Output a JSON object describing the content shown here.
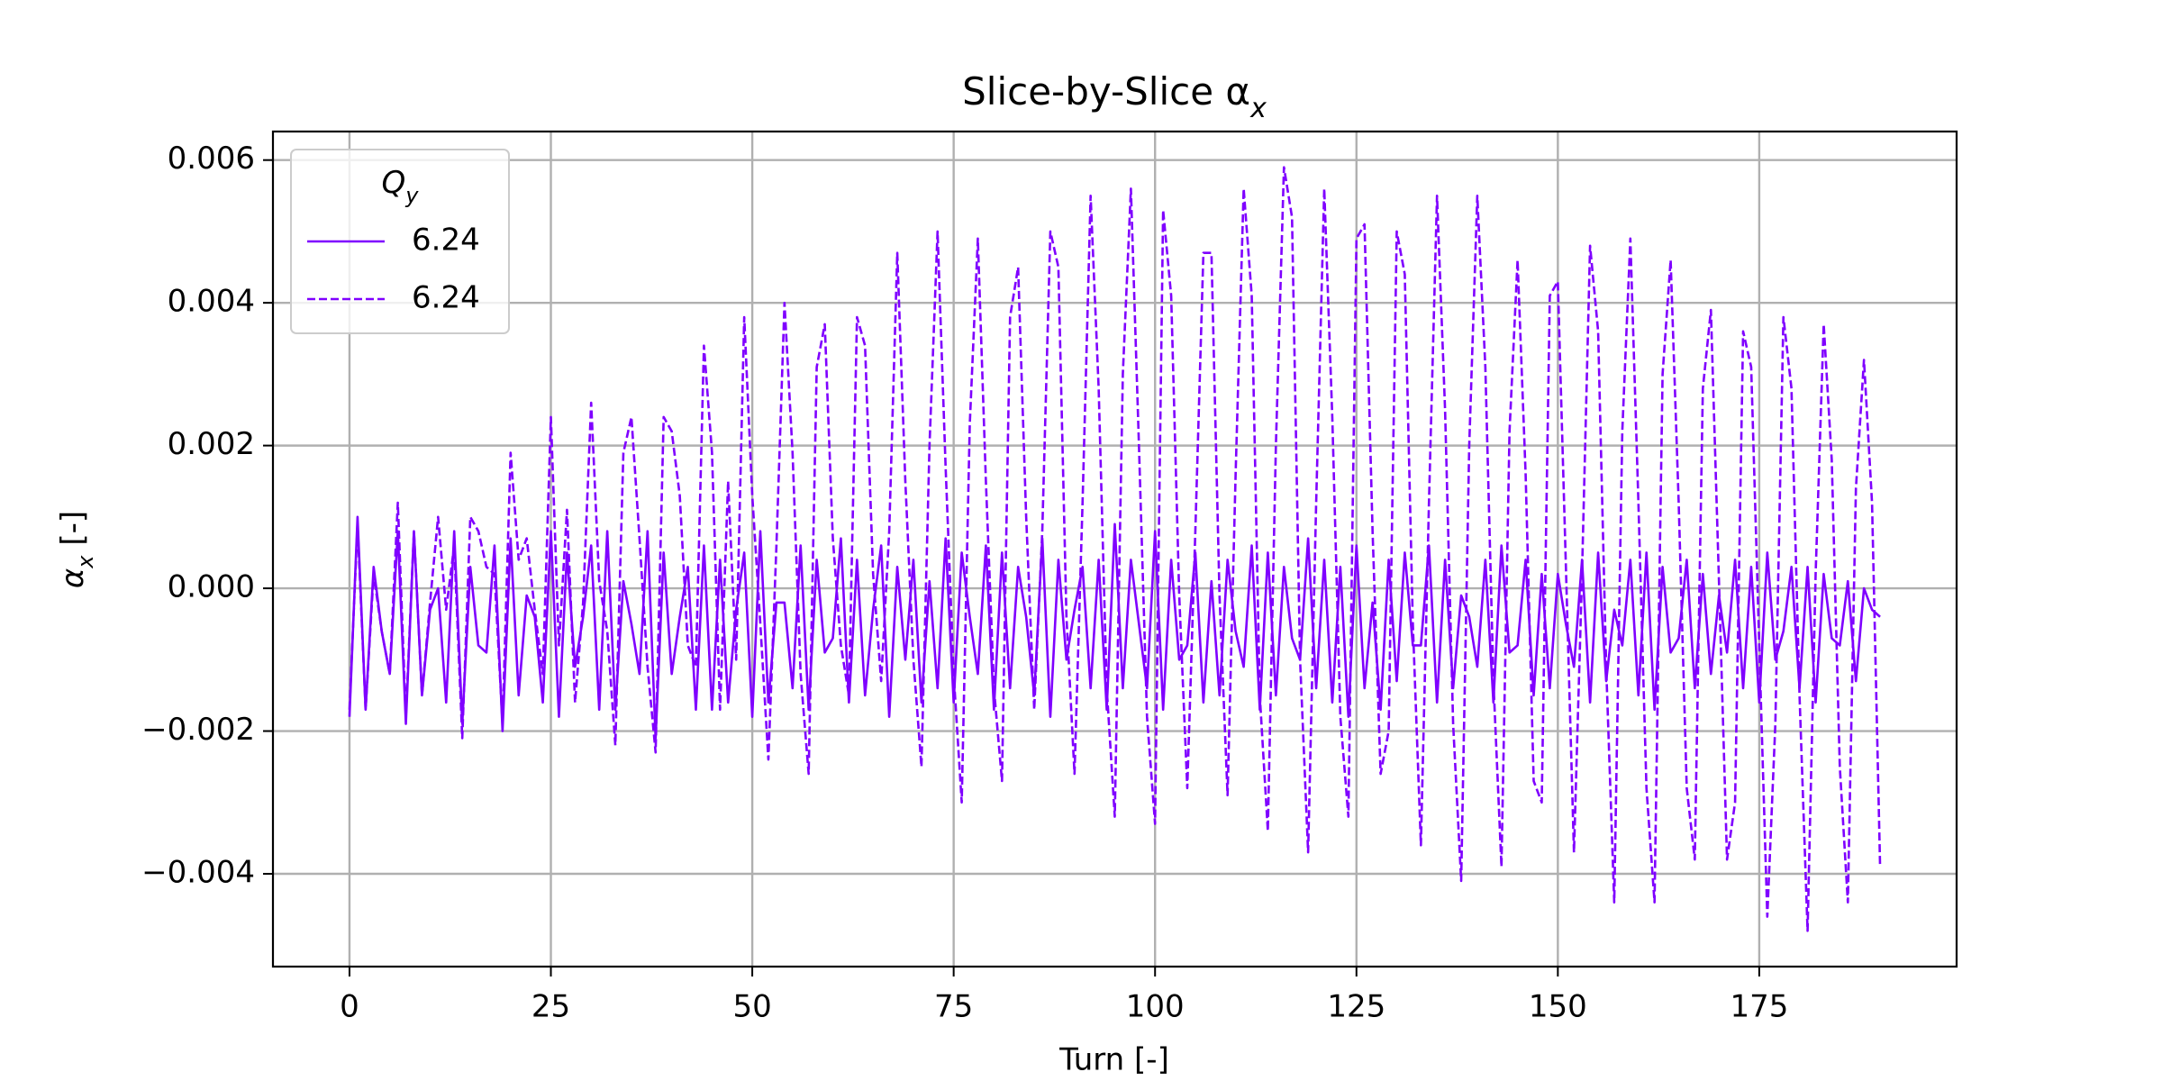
{
  "chart_data": {
    "type": "line",
    "title": {
      "text": "Slice-by-Slice α",
      "subscript": "x"
    },
    "xlabel": "Turn [-]",
    "ylabel": {
      "text": "α",
      "subscript": "x",
      "suffix": " [-]"
    },
    "legend_title": {
      "text": "Q",
      "subscript": "y"
    },
    "legend_position": "upper left",
    "grid": true,
    "xlim": [
      -9.5,
      199.5
    ],
    "ylim": [
      -0.0053,
      0.0064
    ],
    "xticks": [
      0,
      25,
      50,
      75,
      100,
      125,
      150,
      175
    ],
    "yticks": [
      {
        "value": -0.004,
        "label": "−0.004"
      },
      {
        "value": -0.002,
        "label": "−0.002"
      },
      {
        "value": 0,
        "label": "0.000"
      },
      0.002,
      0.004,
      0.006
    ],
    "x": [
      0,
      1,
      2,
      3,
      4,
      5,
      6,
      7,
      8,
      9,
      10,
      11,
      12,
      13,
      14,
      15,
      16,
      17,
      18,
      19,
      20,
      21,
      22,
      23,
      24,
      25,
      26,
      27,
      28,
      29,
      30,
      31,
      32,
      33,
      34,
      35,
      36,
      37,
      38,
      39,
      40,
      41,
      42,
      43,
      44,
      45,
      46,
      47,
      48,
      49,
      50,
      51,
      52,
      53,
      54,
      55,
      56,
      57,
      58,
      59,
      60,
      61,
      62,
      63,
      64,
      65,
      66,
      67,
      68,
      69,
      70,
      71,
      72,
      73,
      74,
      75,
      76,
      77,
      78,
      79,
      80,
      81,
      82,
      83,
      84,
      85,
      86,
      87,
      88,
      89,
      90,
      91,
      92,
      93,
      94,
      95,
      96,
      97,
      98,
      99,
      100,
      101,
      102,
      103,
      104,
      105,
      106,
      107,
      108,
      109,
      110,
      111,
      112,
      113,
      114,
      115,
      116,
      117,
      118,
      119,
      120,
      121,
      122,
      123,
      124,
      125,
      126,
      127,
      128,
      129,
      130,
      131,
      132,
      133,
      134,
      135,
      136,
      137,
      138,
      139,
      140,
      141,
      142,
      143,
      144,
      145,
      146,
      147,
      148,
      149,
      150,
      151,
      152,
      153,
      154,
      155,
      156,
      157,
      158,
      159,
      160,
      161,
      162,
      163,
      164,
      165,
      166,
      167,
      168,
      169,
      170,
      171,
      172,
      173,
      174,
      175,
      176,
      177,
      178,
      179,
      180,
      181,
      182,
      183,
      184,
      185,
      186,
      187,
      188,
      189,
      190
    ],
    "series": [
      {
        "name": "6.24",
        "color": "#7f00ff",
        "linestyle": "solid",
        "values": [
          -0.0018,
          0.001,
          -0.0017,
          0.0003,
          -0.0006,
          -0.0012,
          0.0008,
          -0.0019,
          0.0008,
          -0.0015,
          -0.0003,
          0.0,
          -0.0016,
          0.0008,
          -0.0019,
          0.0003,
          -0.0008,
          -0.0009,
          0.0006,
          -0.002,
          0.0007,
          -0.0015,
          -0.0001,
          -0.0004,
          -0.0016,
          0.0008,
          -0.0018,
          0.0005,
          -0.0011,
          -0.0004,
          0.0006,
          -0.0017,
          0.0008,
          -0.0017,
          0.0001,
          -0.0005,
          -0.0012,
          0.0008,
          -0.0021,
          0.0005,
          -0.0012,
          -0.0004,
          0.0003,
          -0.0017,
          0.0006,
          -0.0017,
          0.0004,
          -0.0016,
          -0.0003,
          0.0005,
          -0.0018,
          0.0008,
          -0.0016,
          -0.0002,
          -0.0002,
          -0.0014,
          0.0006,
          -0.0017,
          0.0004,
          -0.0009,
          -0.0007,
          0.0007,
          -0.0016,
          0.0004,
          -0.0015,
          -0.0003,
          0.0006,
          -0.0018,
          0.0003,
          -0.001,
          0.0004,
          -0.0016,
          0.0001,
          -0.0014,
          0.0007,
          -0.0016,
          0.0005,
          -0.0004,
          -0.0012,
          0.0006,
          -0.0017,
          0.0005,
          -0.0014,
          0.0003,
          -0.0004,
          -0.0015,
          0.0007,
          -0.0018,
          0.0004,
          -0.001,
          -0.0003,
          0.0003,
          -0.0014,
          0.0004,
          -0.0017,
          0.0009,
          -0.0014,
          0.0004,
          -0.0005,
          -0.0014,
          0.0008,
          -0.0017,
          0.0004,
          -0.001,
          -0.0008,
          0.0005,
          -0.0016,
          0.0001,
          -0.0015,
          0.0004,
          -0.0006,
          -0.0011,
          0.0006,
          -0.0017,
          0.0005,
          -0.0015,
          0.0003,
          -0.0007,
          -0.001,
          0.0007,
          -0.0014,
          0.0004,
          -0.0016,
          0.0003,
          -0.0018,
          0.0006,
          -0.0014,
          -0.0002,
          -0.0017,
          0.0004,
          -0.0013,
          0.0005,
          -0.0008,
          -0.0008,
          0.0006,
          -0.0016,
          0.0004,
          -0.0014,
          -0.0001,
          -0.0004,
          -0.0011,
          0.0004,
          -0.0016,
          0.0006,
          -0.0009,
          -0.0008,
          0.0004,
          -0.0015,
          0.0002,
          -0.0014,
          0.0002,
          -0.0005,
          -0.0011,
          0.0004,
          -0.0016,
          0.0005,
          -0.0013,
          -0.0003,
          -0.0008,
          0.0004,
          -0.0015,
          0.0005,
          -0.0017,
          0.0003,
          -0.0009,
          -0.0007,
          0.0004,
          -0.0014,
          0.0002,
          -0.0012,
          -0.0001,
          -0.0009,
          0.0004,
          -0.0014,
          0.0003,
          -0.0016,
          0.0005,
          -0.001,
          -0.0006,
          0.0003,
          -0.0014,
          0.0003,
          -0.0016,
          0.0002,
          -0.0007,
          -0.0008,
          0.0001,
          -0.0013,
          0.0,
          -0.0003,
          -0.0004
        ]
      },
      {
        "name": "6.24",
        "color": "#7f00ff",
        "linestyle": "dashed",
        "values": [
          -0.0017,
          0.0009,
          -0.0017,
          0.0002,
          -0.0006,
          -0.0012,
          0.0012,
          -0.0018,
          0.0008,
          -0.0015,
          -0.0002,
          0.001,
          -0.0003,
          0.0006,
          -0.0021,
          0.001,
          0.0008,
          0.0003,
          0.0002,
          -0.0019,
          0.0019,
          0.0004,
          0.0007,
          -0.0003,
          -0.0012,
          0.0024,
          -0.0008,
          0.0011,
          -0.0016,
          -0.0002,
          0.0026,
          0.0001,
          -0.0006,
          -0.0022,
          0.0019,
          0.0024,
          0.0007,
          -0.0011,
          -0.0023,
          0.0024,
          0.0022,
          0.0013,
          -0.0008,
          -0.0011,
          0.0034,
          0.0019,
          -0.0017,
          0.0015,
          -0.001,
          0.0038,
          0.0013,
          -0.0005,
          -0.0024,
          0.0006,
          0.004,
          0.0019,
          -0.0012,
          -0.0026,
          0.0031,
          0.0037,
          0.0007,
          -0.0008,
          -0.0015,
          0.0038,
          0.0034,
          0.0002,
          -0.0013,
          0.0008,
          0.0047,
          0.0015,
          -0.001,
          -0.0025,
          0.002,
          0.005,
          0.0017,
          -0.0012,
          -0.003,
          0.0023,
          0.0049,
          0.0015,
          -0.0014,
          -0.0027,
          0.0038,
          0.0045,
          0.001,
          -0.0017,
          0.0008,
          0.005,
          0.0045,
          -0.0004,
          -0.0026,
          0.0012,
          0.0055,
          0.0028,
          -0.0014,
          -0.0032,
          0.003,
          0.0056,
          0.002,
          -0.0018,
          -0.0033,
          0.0053,
          0.0041,
          -0.0001,
          -0.0028,
          0.0008,
          0.0047,
          0.0047,
          -0.0001,
          -0.0029,
          0.0016,
          0.0056,
          0.0041,
          -0.0015,
          -0.0034,
          0.002,
          0.0059,
          0.0052,
          -0.001,
          -0.0037,
          0.0012,
          0.0056,
          0.0024,
          -0.0018,
          -0.0032,
          0.0049,
          0.0051,
          0.0008,
          -0.0026,
          -0.002,
          0.005,
          0.0044,
          -0.0005,
          -0.0036,
          0.0012,
          0.0055,
          0.0025,
          -0.0019,
          -0.0041,
          0.002,
          0.0055,
          0.0031,
          -0.0013,
          -0.0039,
          0.0022,
          0.0046,
          0.0016,
          -0.0027,
          -0.003,
          0.0041,
          0.0043,
          0.0003,
          -0.0037,
          0.0002,
          0.0048,
          0.0036,
          -0.0011,
          -0.0044,
          0.0022,
          0.0049,
          0.0012,
          -0.0028,
          -0.0044,
          0.003,
          0.0046,
          0.0012,
          -0.0028,
          -0.0038,
          0.0028,
          0.0039,
          0.0001,
          -0.0038,
          -0.003,
          0.0036,
          0.0031,
          -0.0008,
          -0.0046,
          -0.0019,
          0.0038,
          0.0028,
          -0.0015,
          -0.0048,
          0.0002,
          0.0037,
          0.0018,
          -0.0025,
          -0.0044,
          0.0014,
          0.0032,
          0.0012,
          -0.0039
        ]
      }
    ]
  }
}
